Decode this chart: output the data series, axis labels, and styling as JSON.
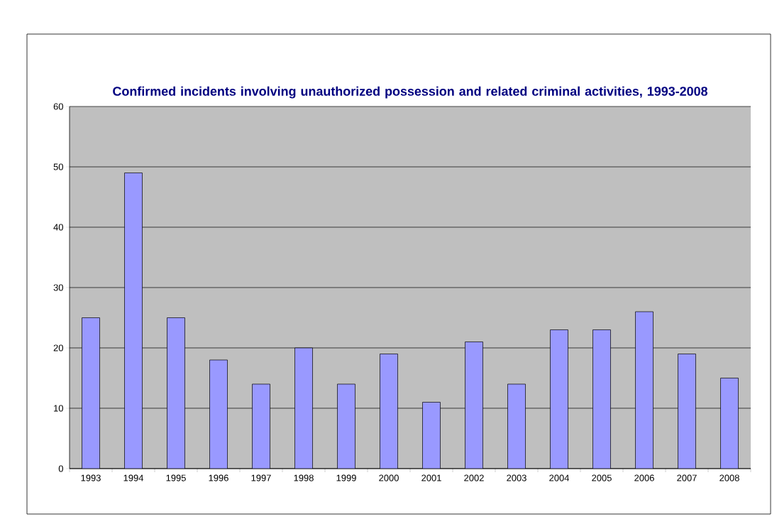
{
  "chart_data": {
    "type": "bar",
    "title": "Confirmed incidents involving unauthorized possession and related criminal activities, 1993-2008",
    "categories": [
      "1993",
      "1994",
      "1995",
      "1996",
      "1997",
      "1998",
      "1999",
      "2000",
      "2001",
      "2002",
      "2003",
      "2004",
      "2005",
      "2006",
      "2007",
      "2008"
    ],
    "values": [
      25,
      49,
      25,
      18,
      14,
      20,
      14,
      19,
      11,
      21,
      14,
      23,
      23,
      26,
      19,
      15
    ],
    "color": "#9999ff",
    "ylim": [
      0,
      60
    ],
    "yticks": [
      0,
      10,
      20,
      30,
      40,
      50,
      60
    ],
    "grid": "y"
  }
}
